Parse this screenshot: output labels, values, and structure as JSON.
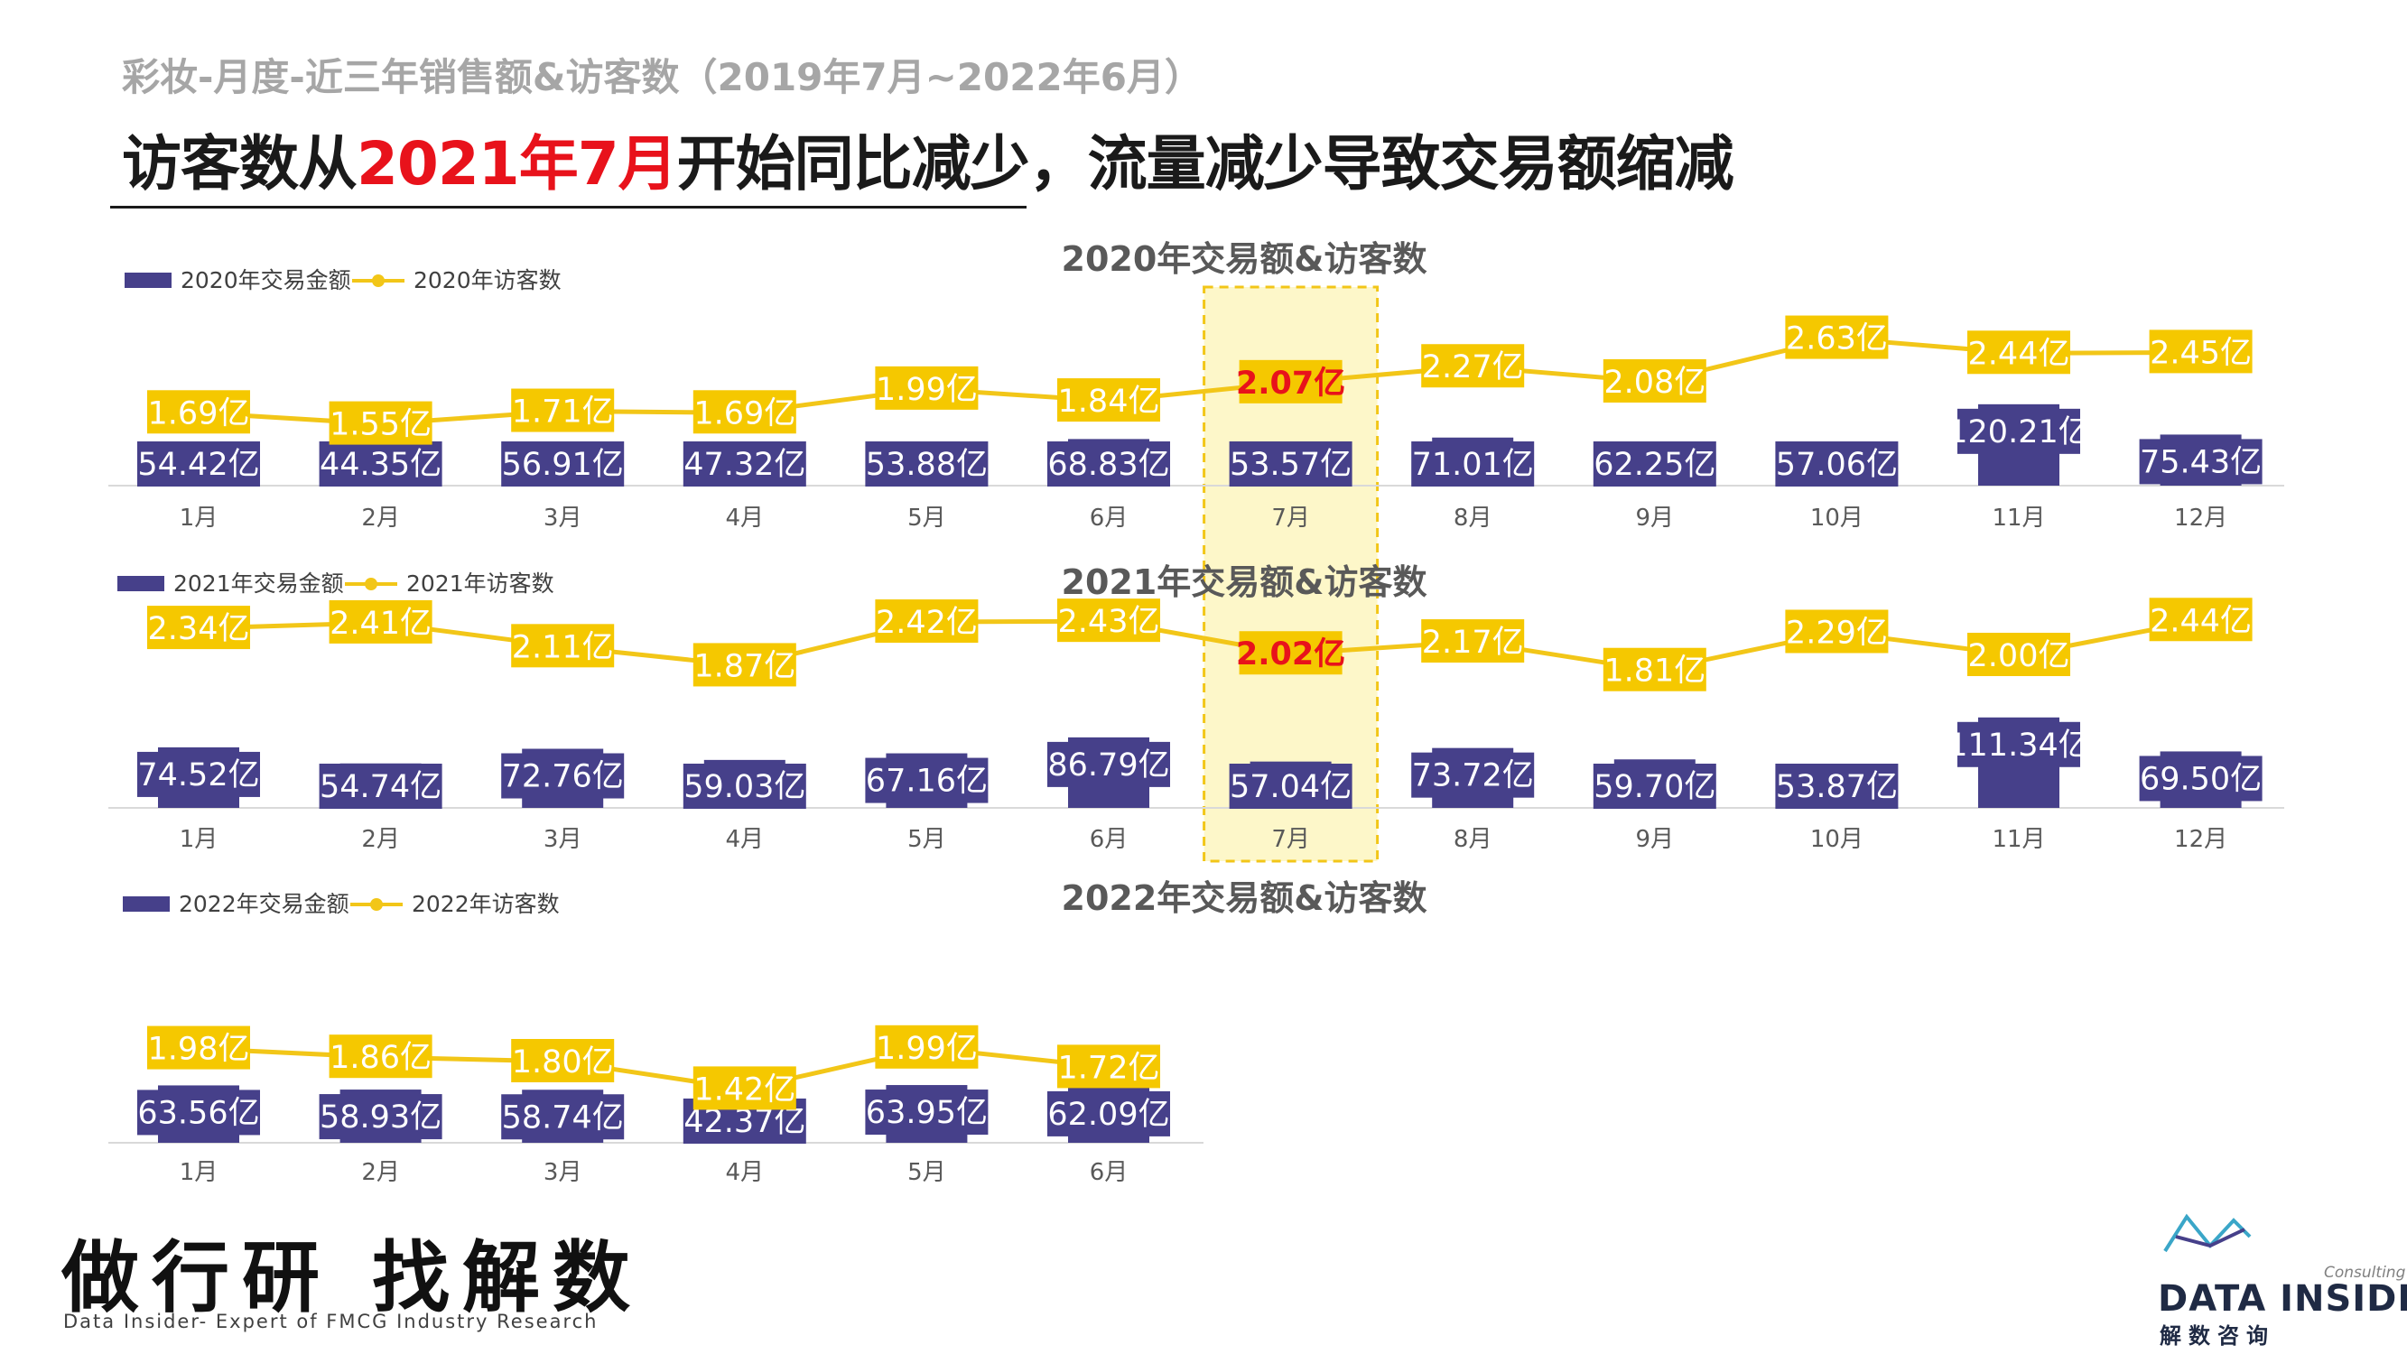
{
  "header": {
    "supertitle": "彩妆-月度-近三年销售额&访客数（2019年7月~2022年6月）",
    "headline_before": "访客数从",
    "headline_highlight": "2021年7月",
    "headline_after": "开始同比减少，流量减少导致交易额缩减"
  },
  "colors": {
    "bar": "#46408a",
    "line": "#f2c618",
    "label_box": "#f5c800",
    "highlight_text": "#e8121b",
    "highlight_band": "#fdf7c9"
  },
  "highlight_month": "7月",
  "value_unit": "亿",
  "chart_data": [
    {
      "type": "bar",
      "title": "2020年交易额&访客数",
      "categories": [
        "1月",
        "2月",
        "3月",
        "4月",
        "5月",
        "6月",
        "7月",
        "8月",
        "9月",
        "10月",
        "11月",
        "12月"
      ],
      "series": [
        {
          "name": "2020年交易金额",
          "kind": "bar",
          "values": [
            54.42,
            44.35,
            56.91,
            47.32,
            53.88,
            68.83,
            53.57,
            71.01,
            62.25,
            57.06,
            120.21,
            75.43
          ]
        },
        {
          "name": "2020年访客数",
          "kind": "line",
          "values": [
            1.69,
            1.55,
            1.71,
            1.69,
            1.99,
            1.84,
            2.07,
            2.27,
            2.08,
            2.63,
            2.44,
            2.45
          ]
        }
      ]
    },
    {
      "type": "bar",
      "title": "2021年交易额&访客数",
      "categories": [
        "1月",
        "2月",
        "3月",
        "4月",
        "5月",
        "6月",
        "7月",
        "8月",
        "9月",
        "10月",
        "11月",
        "12月"
      ],
      "series": [
        {
          "name": "2021年交易金额",
          "kind": "bar",
          "values": [
            74.52,
            54.74,
            72.76,
            59.03,
            67.16,
            86.79,
            57.04,
            73.72,
            59.7,
            53.87,
            111.34,
            69.5
          ]
        },
        {
          "name": "2021年访客数",
          "kind": "line",
          "values": [
            2.34,
            2.41,
            2.11,
            1.87,
            2.42,
            2.43,
            2.02,
            2.17,
            1.81,
            2.29,
            2.0,
            2.44
          ]
        }
      ]
    },
    {
      "type": "bar",
      "title": "2022年交易额&访客数",
      "categories": [
        "1月",
        "2月",
        "3月",
        "4月",
        "5月",
        "6月"
      ],
      "series": [
        {
          "name": "2022年交易金额",
          "kind": "bar",
          "values": [
            63.56,
            58.93,
            58.74,
            42.37,
            63.95,
            62.09
          ]
        },
        {
          "name": "2022年访客数",
          "kind": "line",
          "values": [
            1.98,
            1.86,
            1.8,
            1.42,
            1.99,
            1.72
          ]
        }
      ]
    }
  ],
  "footer": {
    "slogan": "做行研 找解数",
    "slogan_sub": "Data Insider- Expert of FMCG Industry Research",
    "brand_consulting": "Consulting",
    "brand_name": "DATA INSIDER",
    "brand_cn": "解数咨询"
  }
}
